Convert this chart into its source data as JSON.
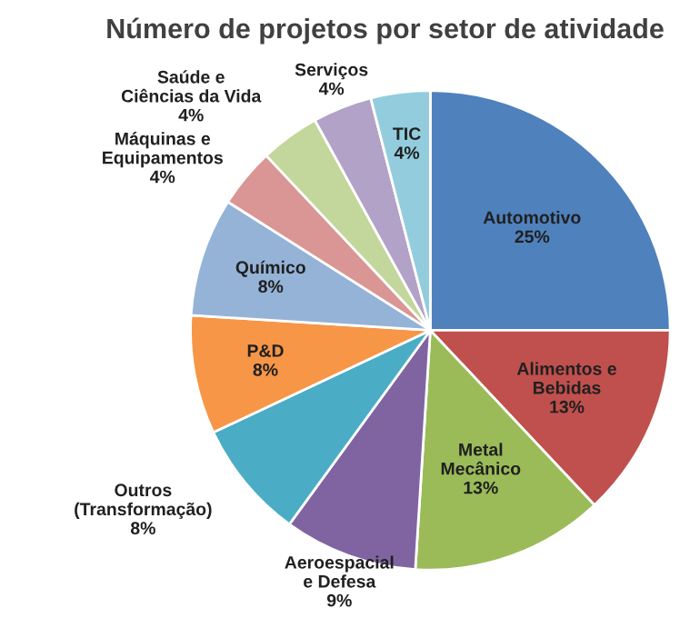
{
  "chart_data": {
    "type": "pie",
    "title": "Número de projetos por setor de atividade",
    "categories": [
      "Automotivo",
      "Alimentos e\nBebidas",
      "Metal\nMecânico",
      "Aeroespacial\ne Defesa",
      "Outros\n(Transformação)",
      "P&D",
      "Químico",
      "Máquinas e\nEquipamentos",
      "Saúde e\nCiências da Vida",
      "Serviços",
      "TIC"
    ],
    "values": [
      25,
      13,
      13,
      9,
      8,
      8,
      8,
      4,
      4,
      4,
      4
    ],
    "value_labels": [
      "25%",
      "13%",
      "13%",
      "9%",
      "8%",
      "8%",
      "8%",
      "4%",
      "4%",
      "4%",
      "4%"
    ],
    "colors": [
      "#4f81bd",
      "#c0504d",
      "#9bbb59",
      "#8064a2",
      "#4bacc6",
      "#f79646",
      "#95b3d7",
      "#d99694",
      "#c3d69b",
      "#b3a2c7",
      "#93cddd"
    ]
  }
}
